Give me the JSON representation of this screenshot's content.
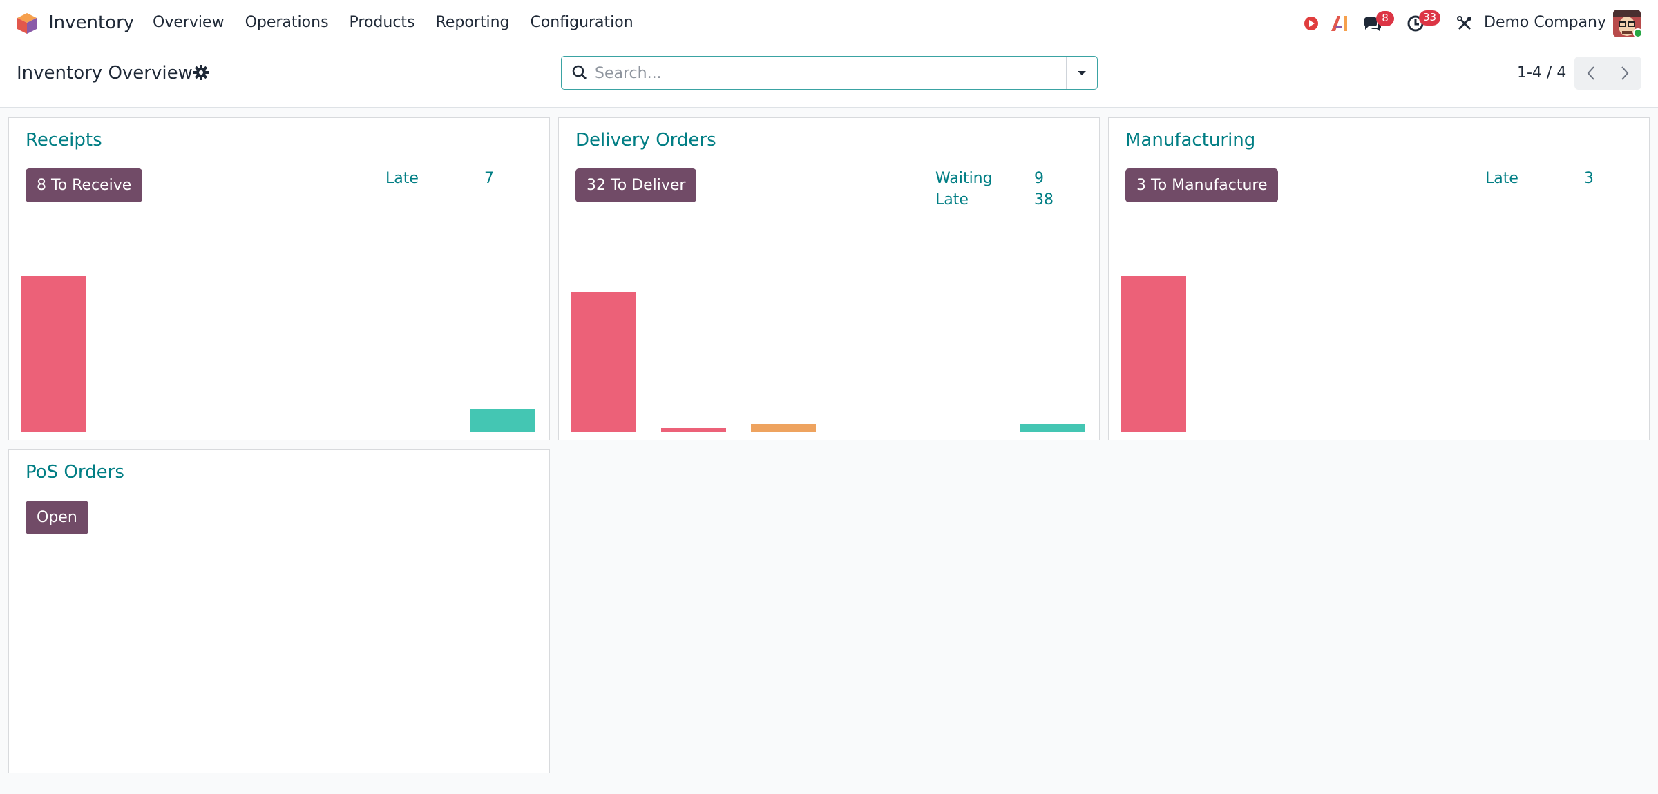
{
  "navbar": {
    "app_name": "Inventory",
    "menu": [
      "Overview",
      "Operations",
      "Products",
      "Reporting",
      "Configuration"
    ],
    "messages_badge": "8",
    "activities_badge": "33",
    "company": "Demo Company"
  },
  "control_panel": {
    "title": "Inventory Overview",
    "search_placeholder": "Search...",
    "pager": "1-4 / 4"
  },
  "cards": [
    {
      "title": "Receipts",
      "button": "8 To Receive",
      "stats": [
        {
          "label": "Late",
          "value": "7"
        }
      ],
      "chart_data": {
        "type": "bar",
        "values": [
          {
            "value": 1.0,
            "color": "#ec6178"
          },
          {
            "value": 0.15,
            "color": "#44c6b3"
          }
        ]
      }
    },
    {
      "title": "Delivery Orders",
      "button": "32 To Deliver",
      "stats": [
        {
          "label": "Waiting",
          "value": "9"
        },
        {
          "label": "Late",
          "value": "38"
        }
      ],
      "chart_data": {
        "type": "bar",
        "values": [
          {
            "value": 1.0,
            "color": "#ec6178"
          },
          {
            "value": 0.03,
            "color": "#ec6178"
          },
          {
            "value": 0.05,
            "color": "#eea35f"
          },
          {
            "value": 0.05,
            "color": "#44c6b3"
          }
        ]
      }
    },
    {
      "title": "Manufacturing",
      "button": "3 To Manufacture",
      "stats": [
        {
          "label": "Late",
          "value": "3"
        }
      ],
      "chart_data": {
        "type": "bar",
        "values": [
          {
            "value": 1.0,
            "color": "#ec6178"
          }
        ]
      }
    },
    {
      "title": "PoS Orders",
      "button": "Open",
      "stats": []
    }
  ]
}
